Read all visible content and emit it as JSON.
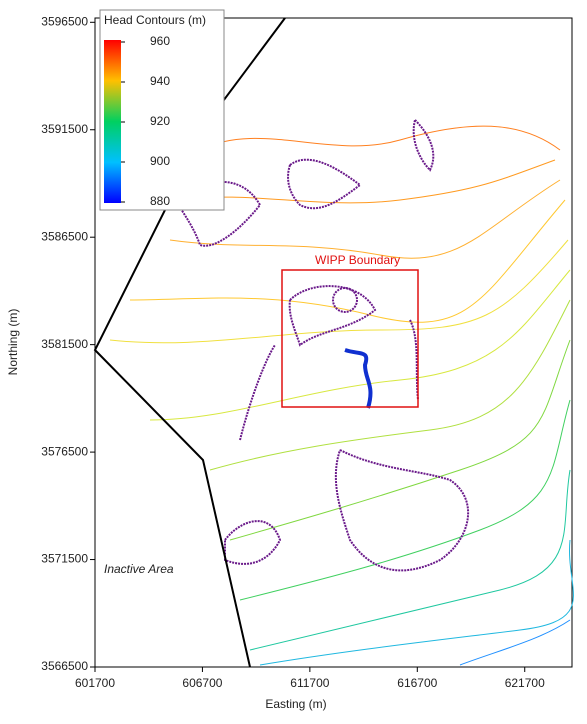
{
  "chart_data": {
    "type": "contour",
    "x_label": "Easting (m)",
    "y_label": "Northing (m)",
    "xlim": [
      601700,
      623900
    ],
    "ylim": [
      3566500,
      3596700
    ],
    "xticks": [
      601700,
      606700,
      611700,
      616700,
      621700
    ],
    "yticks": [
      3566500,
      3571500,
      3576500,
      3581500,
      3586500,
      3591500,
      3596500
    ],
    "colorbar": {
      "title": "Head Contours (m)",
      "lim": [
        880,
        960
      ],
      "ticks": [
        960,
        940,
        920,
        900,
        880
      ]
    },
    "annotations": [
      "WIPP Boundary",
      "Inactive Area"
    ]
  }
}
